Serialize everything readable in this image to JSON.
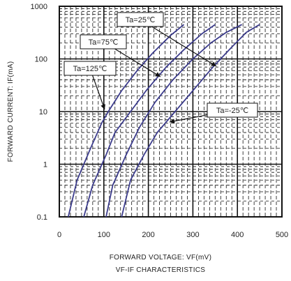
{
  "chart_data": {
    "type": "line",
    "title": "VF-IF CHARACTERISTICS",
    "xlabel": "FORWARD VOLTAGE: VF(mV)",
    "ylabel": "FORWARD CURRENT: IF(mA)",
    "xlim": [
      0,
      500
    ],
    "ylim": [
      0.1,
      1000
    ],
    "yscale": "log",
    "grid": true,
    "x_ticks": [
      "0",
      "100",
      "200",
      "300",
      "400",
      "500"
    ],
    "y_ticks": [
      "0.1",
      "1",
      "10",
      "100",
      "1000"
    ],
    "colors": {
      "series": "#3c3c8c",
      "grid": "#111111",
      "text": "#222222"
    },
    "series": [
      {
        "name": "Ta=125℃",
        "x": [
          20,
          40,
          70,
          95,
          110,
          140,
          175,
          210,
          250,
          280
        ],
        "y": [
          0.1,
          0.5,
          2,
          6,
          10,
          25,
          60,
          130,
          280,
          450
        ]
      },
      {
        "name": "Ta=75℃",
        "x": [
          55,
          75,
          105,
          125,
          160,
          195,
          240,
          280,
          320,
          350
        ],
        "y": [
          0.1,
          0.4,
          1.5,
          4,
          10,
          25,
          70,
          150,
          300,
          450
        ]
      },
      {
        "name": "Ta=25℃",
        "x": [
          105,
          120,
          150,
          180,
          215,
          255,
          300,
          340,
          375,
          410
        ],
        "y": [
          0.1,
          0.4,
          1.5,
          5,
          15,
          40,
          100,
          200,
          320,
          450
        ]
      },
      {
        "name": "Ta=-25℃",
        "x": [
          140,
          160,
          190,
          220,
          260,
          300,
          345,
          385,
          420,
          450
        ],
        "y": [
          0.1,
          0.5,
          1.5,
          4,
          10,
          25,
          70,
          160,
          320,
          450
        ]
      }
    ],
    "annotations": [
      {
        "text": "Ta=25℃",
        "points_to": "Ta=25℃"
      },
      {
        "text": "Ta=75℃",
        "points_to": "Ta=75℃"
      },
      {
        "text": "Ta=125℃",
        "points_to": "Ta=125℃"
      },
      {
        "text": "Ta=-25℃",
        "points_to": "Ta=-25℃"
      }
    ]
  }
}
